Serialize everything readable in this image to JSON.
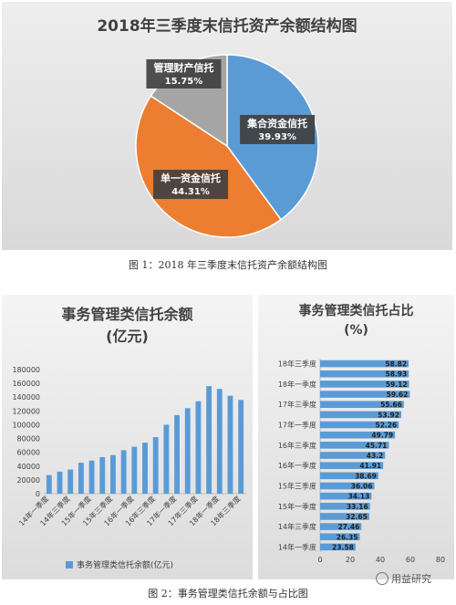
{
  "chart_data": [
    {
      "type": "pie",
      "title": "2018年三季度末信托资产余额结构图",
      "slices": [
        {
          "label": "集合资金信托",
          "value": 39.93,
          "value_text": "39.93%",
          "color": "#5b9bd5"
        },
        {
          "label": "单一资金信托",
          "value": 44.31,
          "value_text": "44.31%",
          "color": "#ed7d31"
        },
        {
          "label": "管理财产信托",
          "value": 15.75,
          "value_text": "15.75%",
          "color": "#a5a5a5"
        }
      ]
    },
    {
      "type": "bar",
      "title_line1": "事务管理类信托余额",
      "title_line2": "(亿元)",
      "categories": [
        "14年一季度",
        "14年二季度",
        "14年三季度",
        "14年四季度",
        "15年一季度",
        "15年二季度",
        "15年三季度",
        "15年四季度",
        "16年一季度",
        "16年二季度",
        "16年三季度",
        "16年四季度",
        "17年一季度",
        "17年二季度",
        "17年三季度",
        "17年四季度",
        "18年一季度",
        "18年二季度",
        "18年三季度"
      ],
      "shown_category_labels": [
        "14年一季度",
        "14年三季度",
        "15年一季度",
        "15年三季度",
        "16年一季度",
        "16年三季度",
        "17年一季度",
        "17年三季度",
        "18年一季度",
        "18年三季度"
      ],
      "series": [
        {
          "name": "事务管理类信托余额(亿元)",
          "color": "#5b9bd5",
          "values": [
            27000,
            32000,
            35000,
            45000,
            48000,
            53000,
            56000,
            63000,
            68000,
            74000,
            82000,
            100000,
            114000,
            124000,
            134000,
            156000,
            152000,
            142000,
            136000
          ]
        }
      ],
      "ylim": [
        0,
        180000
      ],
      "yticks": [
        "0",
        "20000",
        "40000",
        "60000",
        "80000",
        "100000",
        "120000",
        "140000",
        "160000",
        "180000"
      ],
      "grid": false
    },
    {
      "type": "bar",
      "orientation": "horizontal",
      "title_line1": "事务管理类信托占比",
      "title_line2": "(%)",
      "categories": [
        "14年一季度",
        "14年二季度",
        "14年三季度",
        "14年四季度",
        "15年一季度",
        "15年二季度",
        "15年三季度",
        "15年四季度",
        "16年一季度",
        "16年二季度",
        "16年三季度",
        "16年四季度",
        "17年一季度",
        "17年二季度",
        "17年三季度",
        "17年四季度",
        "18年一季度",
        "18年二季度",
        "18年三季度"
      ],
      "shown_category_labels": [
        "14年一季度",
        "14年三季度",
        "15年一季度",
        "15年三季度",
        "16年一季度",
        "16年三季度",
        "17年一季度",
        "17年三季度",
        "18年一季度",
        "18年三季度"
      ],
      "values": [
        23.58,
        26.35,
        27.46,
        32.65,
        33.16,
        34.13,
        36.06,
        38.69,
        41.91,
        43.2,
        45.71,
        49.79,
        52.26,
        53.92,
        55.66,
        59.62,
        59.12,
        58.93,
        58.82
      ],
      "value_labels": [
        "23.58",
        "26.35",
        "27.46",
        "32.65",
        "33.16",
        "34.13",
        "36.06",
        "38.69",
        "41.91",
        "43.2",
        "45.71",
        "49.79",
        "52.26",
        "53.92",
        "55.66",
        "59.62",
        "59.12",
        "58.93",
        "58.82"
      ],
      "xlim": [
        0,
        80
      ],
      "xticks": [
        "0",
        "20",
        "40",
        "60",
        "80"
      ],
      "color": "#5b9bd5"
    }
  ],
  "captions": {
    "figure1": "图 1：2018 年三季度末信托资产余额结构图",
    "figure2": "图 2：事务管理类信托余额与占比图"
  },
  "watermark": {
    "text": "用益研究",
    "icon": "wechat-logo-icon"
  }
}
